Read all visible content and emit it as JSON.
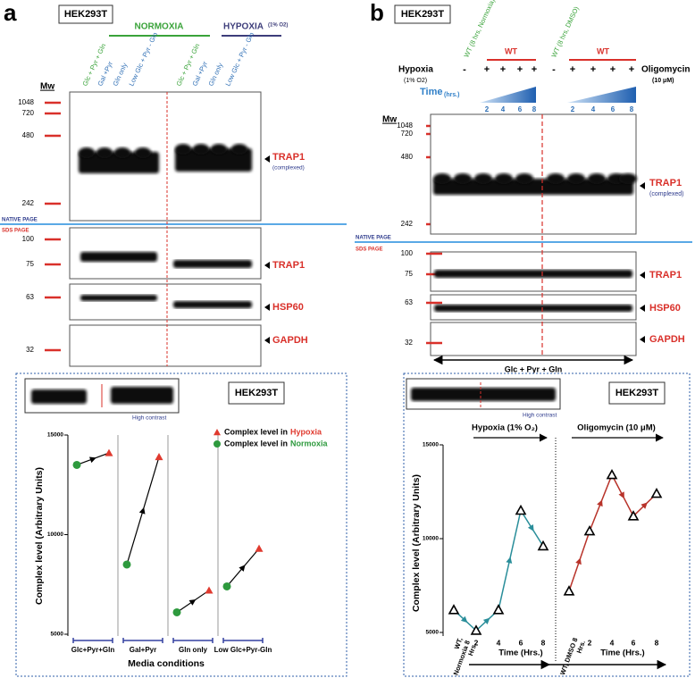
{
  "panel_a": {
    "label": "a",
    "cell_line": "HEK293T",
    "normoxia": "NORMOXIA",
    "hypoxia": "HYPOXIA",
    "hypoxia_note": "(1% O2)",
    "lanes": [
      "Glc + Pyr + Gln",
      "Gal +Pyr",
      "Gln only",
      "Low Glc + Pyr - Gln",
      "Glc + Pyr + Gln",
      "Gal +Pyr",
      "Gln only",
      "Low Glc + Pyr - Gln"
    ],
    "mw_label": "Mw",
    "native_markers": [
      "1048",
      "720",
      "480",
      "242"
    ],
    "trap1_complex": "TRAP1",
    "complexed": "(complexed)",
    "native_page": "NATIVE PAGE",
    "sds_page": "SDS PAGE",
    "sds_markers": [
      "100",
      "75",
      "63",
      "32"
    ],
    "trap1": "TRAP1",
    "hsp60": "HSP60",
    "gapdh": "GAPDH",
    "inset_note": "High contrast",
    "inset_cell_line": "HEK293T"
  },
  "panel_b": {
    "label": "b",
    "cell_line": "HEK293T",
    "wt_normoxia": "WT (8 hrs, Normoxia)",
    "wt_dmso": "WT (8 hrs, DMSO)",
    "wt": "WT",
    "hypoxia": "Hypoxia",
    "hypoxia_note": "(1% O2)",
    "oligomycin": "Oligomycin",
    "oligomycin_note": "(10 μM)",
    "signs": [
      "-",
      "+",
      "+",
      "+",
      "+",
      "-",
      "+",
      "+",
      "+",
      "+"
    ],
    "time": "Time",
    "time_unit": "(hrs.)",
    "times": [
      "2",
      "4",
      "6",
      "8",
      "2",
      "4",
      "6",
      "8"
    ],
    "mw_label": "Mw",
    "native_markers": [
      "1048",
      "720",
      "480",
      "242"
    ],
    "trap1_complex": "TRAP1",
    "complexed": "(complexed)",
    "native_page": "NATIVE PAGE",
    "sds_page": "SDS PAGE",
    "sds_markers": [
      "100",
      "75",
      "63",
      "32"
    ],
    "trap1": "TRAP1",
    "hsp60": "HSP60",
    "gapdh": "GAPDH",
    "loading": "Glc + Pyr + Gln",
    "inset_note": "High contrast",
    "inset_cell_line": "HEK293T"
  },
  "chart_data": [
    {
      "type": "dumbbell",
      "y_label": "Complex level (Arbitrary Units)",
      "x_label": "Media conditions",
      "categories": [
        "Glc+Pyr+Gln",
        "Gal+Pyr",
        "Gln only",
        "Low Glc+Pyr-Gln"
      ],
      "series": [
        {
          "name": "Normoxia",
          "color": "#2e9a3e",
          "values": [
            13500,
            8500,
            6100,
            7400
          ]
        },
        {
          "name": "Hypoxia",
          "color": "#e03a2f",
          "values": [
            14100,
            13900,
            7200,
            9300
          ]
        }
      ],
      "legend_prefix": "Complex level in",
      "ylim": [
        5000,
        15000
      ],
      "yticks": [
        5000,
        10000,
        15000
      ]
    },
    {
      "type": "line",
      "y_label": "Complex level (Arbitrary Units)",
      "x_label": "Time (Hrs.)",
      "categories": [
        "WT, Normoxia 8 Hrs.",
        "2",
        "4",
        "6",
        "8",
        "WT, DMSO 8 Hrs.",
        "2",
        "4",
        "6",
        "8"
      ],
      "series": [
        {
          "name": "Hypoxia (1% O₂)",
          "color": "#2a8e9a",
          "values": [
            6200,
            5100,
            6200,
            11500,
            9600,
            null,
            null,
            null,
            null,
            null
          ]
        },
        {
          "name": "Oligomycin (10 μM)",
          "color": "#b8332a",
          "values": [
            null,
            null,
            null,
            null,
            null,
            7200,
            10400,
            13400,
            11200,
            12400
          ]
        }
      ],
      "ylim": [
        5000,
        15000
      ],
      "yticks": [
        5000,
        10000,
        15000
      ]
    }
  ]
}
